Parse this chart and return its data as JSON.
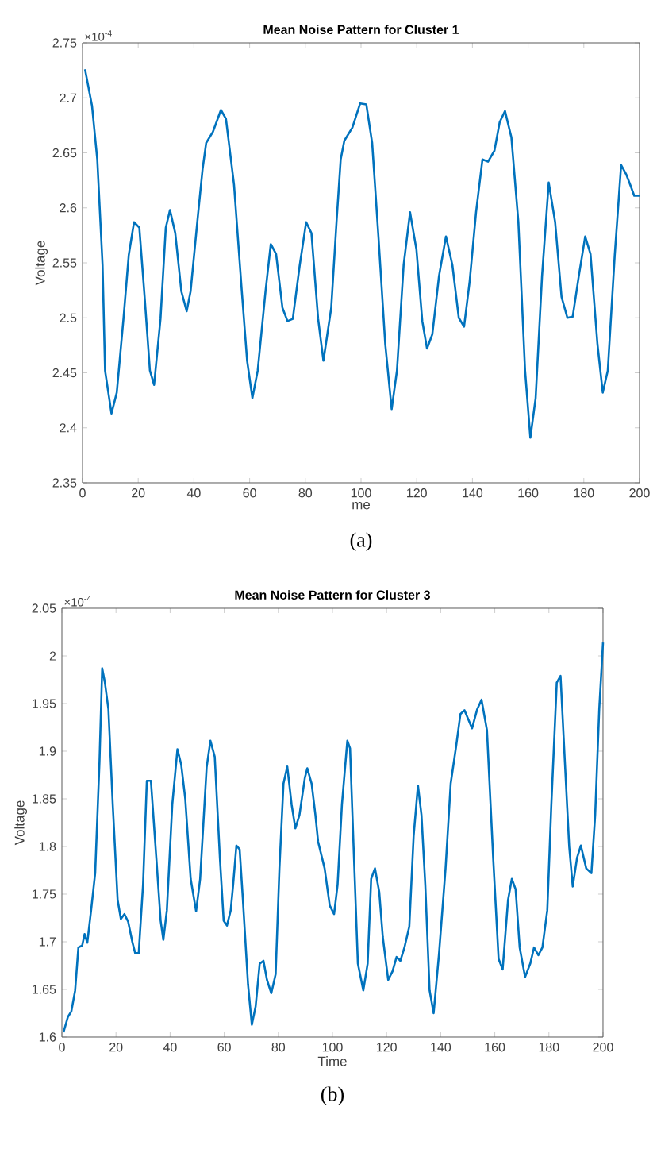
{
  "chart_data": [
    {
      "type": "line",
      "title": "Mean Noise Pattern for Cluster 1",
      "xlabel": "me",
      "ylabel": "Voltage",
      "annotations": [
        "×10$^{-4}$",
        "(a)"
      ],
      "x": [
        0.9,
        3.4,
        5.3,
        7.2,
        8.1,
        10.4,
        12.3,
        14.7,
        16.6,
        18.5,
        20.4,
        22.3,
        24.2,
        25.7,
        28,
        29.9,
        31.4,
        33.3,
        35.5,
        37.4,
        38.8,
        41.2,
        43.1,
        44.4,
        46.8,
        49.7,
        51.5,
        54.4,
        57.2,
        59.1,
        61,
        62.9,
        65.7,
        67.6,
        69.5,
        71.8,
        73.6,
        75.5,
        78,
        80.3,
        82.2,
        84.6,
        86.5,
        89.3,
        91.2,
        92.7,
        94,
        96.9,
        99.7,
        101.9,
        104,
        106.3,
        108.7,
        111,
        112.9,
        115.3,
        117.6,
        119.9,
        122,
        123.7,
        125.6,
        128,
        130.5,
        132.8,
        135.1,
        137,
        139,
        141.3,
        143.6,
        145.6,
        147.9,
        149.8,
        151.7,
        154,
        156.5,
        158.9,
        160.8,
        162.7,
        165,
        167.4,
        169.7,
        172,
        174.1,
        176,
        178.2,
        180.5,
        182.4,
        184.9,
        186.8,
        188.6,
        191.1,
        193.4,
        195.3,
        196.8,
        198.1,
        200
      ],
      "series": [
        {
          "color": "#0072bd",
          "values": [
            2.726,
            2.693,
            2.644,
            2.548,
            2.452,
            2.413,
            2.432,
            2.499,
            2.557,
            2.587,
            2.582,
            2.519,
            2.452,
            2.439,
            2.499,
            2.582,
            2.598,
            2.577,
            2.524,
            2.506,
            2.524,
            2.587,
            2.635,
            2.659,
            2.669,
            2.689,
            2.681,
            2.621,
            2.524,
            2.461,
            2.427,
            2.452,
            2.524,
            2.567,
            2.558,
            2.509,
            2.497,
            2.499,
            2.548,
            2.587,
            2.577,
            2.499,
            2.461,
            2.509,
            2.587,
            2.644,
            2.661,
            2.673,
            2.695,
            2.694,
            2.659,
            2.572,
            2.476,
            2.417,
            2.452,
            2.548,
            2.596,
            2.562,
            2.497,
            2.472,
            2.485,
            2.538,
            2.574,
            2.548,
            2.5,
            2.492,
            2.533,
            2.596,
            2.644,
            2.642,
            2.652,
            2.678,
            2.688,
            2.664,
            2.587,
            2.452,
            2.391,
            2.427,
            2.538,
            2.623,
            2.587,
            2.519,
            2.5,
            2.501,
            2.538,
            2.574,
            2.558,
            2.476,
            2.432,
            2.452,
            2.557,
            2.639,
            2.63,
            2.62,
            2.611,
            2.611
          ]
        }
      ],
      "xlim": [
        0,
        200
      ],
      "ylim": [
        2.35,
        2.75
      ],
      "xticks": [
        0,
        20,
        40,
        60,
        80,
        100,
        120,
        140,
        160,
        180,
        200
      ],
      "yticks": [
        2.35,
        2.4,
        2.45,
        2.5,
        2.55,
        2.6,
        2.65,
        2.7,
        2.75
      ]
    },
    {
      "type": "line",
      "title": "Mean Noise Pattern for Cluster 3",
      "xlabel": "Time",
      "ylabel": "Voltage",
      "annotations": [
        "×10$^{-4}$",
        "(b)"
      ],
      "x": [
        0.6,
        2.2,
        3.5,
        4.9,
        6.1,
        7.5,
        8.4,
        9.4,
        10.8,
        12.3,
        13.9,
        14.9,
        15.9,
        17.2,
        18.8,
        20.6,
        21.8,
        23.1,
        24.5,
        26.1,
        27.1,
        28.4,
        30,
        31.4,
        32.9,
        34.9,
        36.5,
        37.5,
        38.8,
        40.8,
        42.7,
        44.1,
        45.6,
        47.6,
        49.6,
        51.1,
        53.5,
        54.9,
        56.5,
        58.4,
        59.8,
        61,
        62.4,
        63.3,
        64.5,
        65.7,
        66.9,
        68.8,
        70.2,
        71.6,
        73.1,
        74.5,
        75.8,
        77.4,
        79,
        80.4,
        81.9,
        83.3,
        84.9,
        86.3,
        87.8,
        89.8,
        90.7,
        92.3,
        93.7,
        94.7,
        97.1,
        99,
        100.6,
        101.9,
        103.5,
        105.5,
        106.5,
        107.8,
        109.4,
        111.4,
        113,
        114.3,
        115.7,
        117.3,
        118.6,
        120.6,
        122.2,
        123.7,
        125.1,
        126.6,
        128.4,
        130,
        131.6,
        132.9,
        134.3,
        135.9,
        137.4,
        139.4,
        141.8,
        143.7,
        145.7,
        147.3,
        148.8,
        151.6,
        153.5,
        155.1,
        157.1,
        159.4,
        161.4,
        162.9,
        164.9,
        166.3,
        167.7,
        169.2,
        171.2,
        173.1,
        174.5,
        176.1,
        177.6,
        179.4,
        180.9,
        182.9,
        184.3,
        185.9,
        187.5,
        188.8,
        190.4,
        191.8,
        193.8,
        195.7,
        197.1,
        198.6,
        200
      ],
      "series": [
        {
          "color": "#0072bd",
          "values": [
            1.605,
            1.621,
            1.627,
            1.649,
            1.694,
            1.696,
            1.708,
            1.699,
            1.733,
            1.772,
            1.889,
            1.987,
            1.972,
            1.944,
            1.844,
            1.744,
            1.724,
            1.729,
            1.721,
            1.699,
            1.688,
            1.688,
            1.76,
            1.869,
            1.869,
            1.788,
            1.722,
            1.702,
            1.733,
            1.844,
            1.902,
            1.886,
            1.85,
            1.766,
            1.732,
            1.766,
            1.883,
            1.911,
            1.894,
            1.788,
            1.722,
            1.717,
            1.733,
            1.76,
            1.801,
            1.797,
            1.744,
            1.655,
            1.613,
            1.632,
            1.677,
            1.68,
            1.66,
            1.646,
            1.666,
            1.777,
            1.866,
            1.884,
            1.844,
            1.819,
            1.833,
            1.872,
            1.882,
            1.866,
            1.833,
            1.805,
            1.777,
            1.738,
            1.729,
            1.76,
            1.844,
            1.911,
            1.903,
            1.8,
            1.677,
            1.649,
            1.677,
            1.766,
            1.777,
            1.752,
            1.705,
            1.66,
            1.669,
            1.684,
            1.68,
            1.694,
            1.716,
            1.811,
            1.864,
            1.833,
            1.76,
            1.649,
            1.625,
            1.688,
            1.777,
            1.866,
            1.905,
            1.939,
            1.943,
            1.924,
            1.944,
            1.954,
            1.922,
            1.788,
            1.682,
            1.671,
            1.744,
            1.766,
            1.755,
            1.694,
            1.663,
            1.677,
            1.694,
            1.686,
            1.694,
            1.733,
            1.844,
            1.972,
            1.979,
            1.889,
            1.8,
            1.758,
            1.788,
            1.801,
            1.777,
            1.772,
            1.833,
            1.944,
            2.014
          ]
        }
      ],
      "xlim": [
        0,
        200
      ],
      "ylim": [
        1.6,
        2.05
      ],
      "xticks": [
        0,
        20,
        40,
        60,
        80,
        100,
        120,
        140,
        160,
        180,
        200
      ],
      "yticks": [
        1.6,
        1.65,
        1.7,
        1.75,
        1.8,
        1.85,
        1.9,
        1.95,
        2,
        2.05
      ]
    }
  ]
}
